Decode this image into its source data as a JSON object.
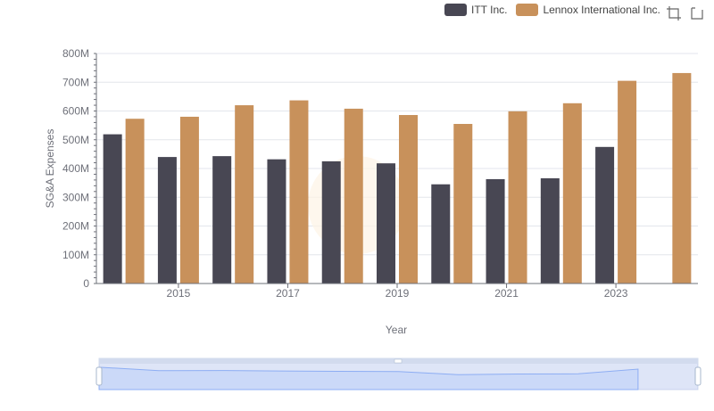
{
  "colors": {
    "itt": "#484753",
    "lennox": "#c8915b",
    "grid": "#e3e6ec",
    "axis": "#6e7079",
    "zoom_fill": "#dbe6fd",
    "zoom_line": "#8fb0f7"
  },
  "toolbar": {
    "zoom_icon": "zoom-box-icon",
    "restore_icon": "restore-icon"
  },
  "chart_data": {
    "type": "bar",
    "xlabel": "Year",
    "ylabel": "SG&A Expenses",
    "ylim": [
      0,
      800000000
    ],
    "y_ticks": [
      "0",
      "100M",
      "200M",
      "300M",
      "400M",
      "500M",
      "600M",
      "700M",
      "800M"
    ],
    "categories": [
      "2014",
      "2015",
      "2016",
      "2017",
      "2018",
      "2019",
      "2020",
      "2021",
      "2022",
      "2023",
      "2024"
    ],
    "x_tick_labels": [
      "2015",
      "2017",
      "2019",
      "2021",
      "2023"
    ],
    "grid": true,
    "legend_position": "top-right",
    "series": [
      {
        "name": "ITT Inc.",
        "values": [
          519000000,
          440000000,
          443000000,
          432000000,
          425000000,
          418000000,
          345000000,
          363000000,
          366000000,
          475000000,
          null
        ]
      },
      {
        "name": "Lennox International Inc.",
        "values": [
          573000000,
          580000000,
          620000000,
          637000000,
          608000000,
          586000000,
          555000000,
          599000000,
          627000000,
          705000000,
          732000000
        ]
      }
    ]
  }
}
